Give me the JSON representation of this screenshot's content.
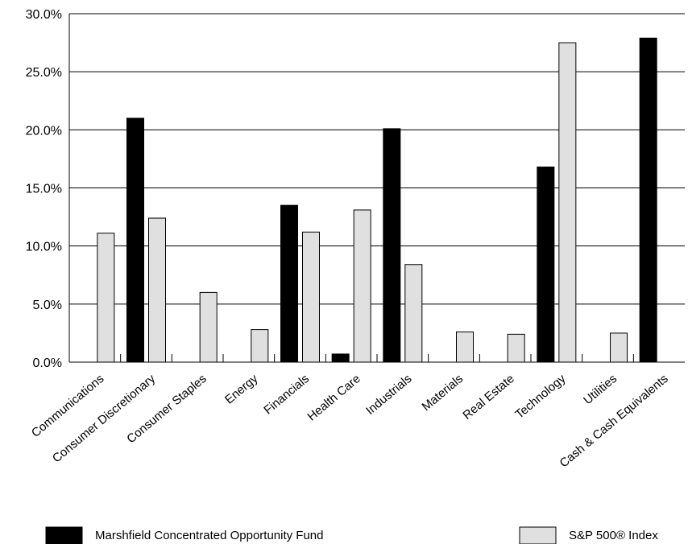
{
  "chart_data": {
    "type": "bar",
    "title": "",
    "xlabel": "",
    "ylabel": "",
    "ylim": [
      0,
      30
    ],
    "y_ticks": [
      "0.0%",
      "5.0%",
      "10.0%",
      "15.0%",
      "20.0%",
      "25.0%",
      "30.0%"
    ],
    "grid": "horizontal",
    "legend_position": "bottom",
    "categories": [
      "Communications",
      "Consumer Discretionary",
      "Consumer Staples",
      "Energy",
      "Financials",
      "Health Care",
      "Industrials",
      "Materials",
      "Real Estate",
      "Technology",
      "Utilities",
      "Cash & Cash Equivalents"
    ],
    "series": [
      {
        "name": "Marshfield Concentrated Opportunity Fund",
        "color": "#000000",
        "values": [
          0,
          21.0,
          0,
          0,
          13.5,
          0.7,
          20.1,
          0,
          0,
          16.8,
          0,
          27.9
        ]
      },
      {
        "name": "S&P 500® Index",
        "color": "#e0e0e0",
        "values": [
          11.1,
          12.4,
          6.0,
          2.8,
          11.2,
          13.1,
          8.4,
          2.6,
          2.4,
          27.5,
          2.5,
          0
        ]
      }
    ]
  }
}
